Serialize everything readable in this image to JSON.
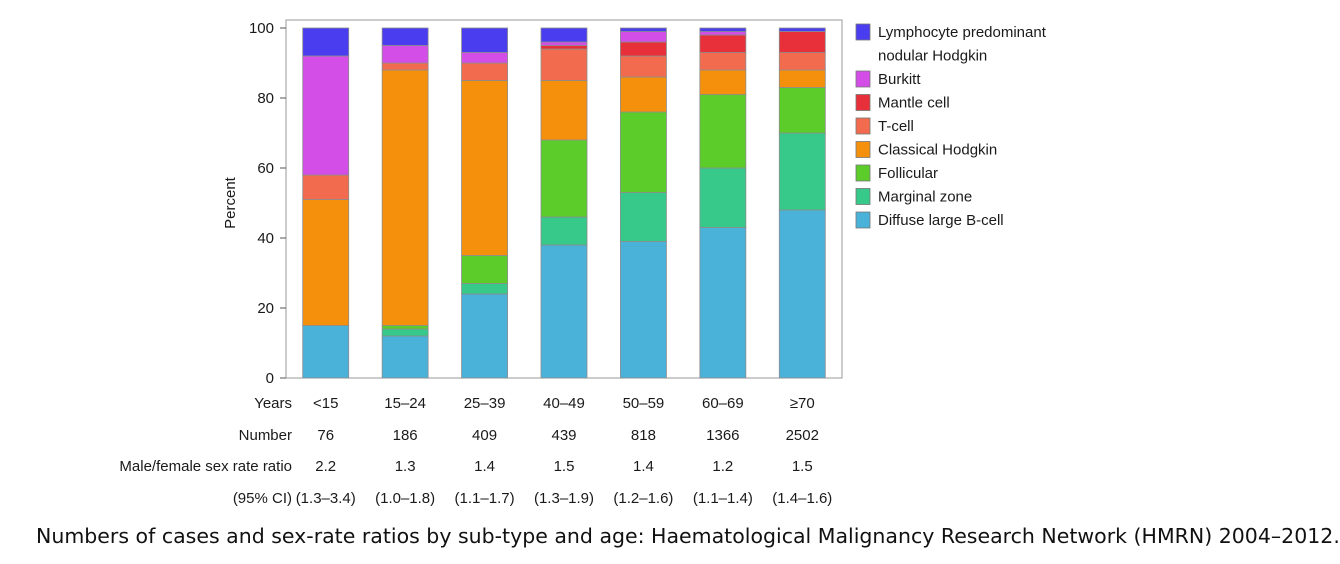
{
  "chart_data": {
    "type": "bar",
    "stacked": true,
    "ylabel": "Percent",
    "ylim": [
      0,
      100
    ],
    "yticks": [
      0,
      20,
      40,
      60,
      80,
      100
    ],
    "categories": [
      "<15",
      "15–24",
      "25–39",
      "40–49",
      "50–59",
      "60–69",
      "≥70"
    ],
    "series": [
      {
        "name": "Diffuse large B-cell",
        "color": "#4ab1d8",
        "values": [
          15,
          12,
          24,
          38,
          39,
          43,
          48
        ]
      },
      {
        "name": "Marginal zone",
        "color": "#36c98a",
        "values": [
          0,
          2,
          3,
          8,
          14,
          17,
          22
        ]
      },
      {
        "name": "Follicular",
        "color": "#5ccc2a",
        "values": [
          0,
          1,
          8,
          22,
          23,
          21,
          13
        ]
      },
      {
        "name": "Classical Hodgkin",
        "color": "#f5900c",
        "values": [
          36,
          73,
          50,
          17,
          10,
          7,
          5
        ]
      },
      {
        "name": "T-cell",
        "color": "#f26b4f",
        "values": [
          7,
          2,
          5,
          9,
          6,
          5,
          5
        ]
      },
      {
        "name": "Mantle cell",
        "color": "#e8303a",
        "values": [
          0,
          0,
          0,
          1,
          4,
          5,
          6
        ]
      },
      {
        "name": "Burkitt",
        "color": "#d24ee6",
        "values": [
          34,
          5,
          3,
          1,
          3,
          1,
          0
        ]
      },
      {
        "name": "Lymphocyte predominant\nnodular Hodgkin",
        "color": "#4a3df0",
        "values": [
          8,
          5,
          7,
          4,
          1,
          1,
          1
        ]
      }
    ],
    "legend_order": [
      7,
      6,
      5,
      4,
      3,
      2,
      1,
      0
    ],
    "legend_position": "right",
    "table": {
      "rows": [
        {
          "label": "Years",
          "values": [
            "<15",
            "15–24",
            "25–39",
            "40–49",
            "50–59",
            "60–69",
            "≥70"
          ]
        },
        {
          "label": "Number",
          "values": [
            "76",
            "186",
            "409",
            "439",
            "818",
            "1366",
            "2502"
          ]
        },
        {
          "label": "Male/female sex rate ratio",
          "values": [
            "2.2",
            "1.3",
            "1.4",
            "1.5",
            "1.4",
            "1.2",
            "1.5"
          ]
        },
        {
          "label": "(95% CI)",
          "values": [
            "(1.3–3.4)",
            "(1.0–1.8)",
            "(1.1–1.7)",
            "(1.3–1.9)",
            "(1.2–1.6)",
            "(1.1–1.4)",
            "(1.4–1.6)"
          ]
        }
      ]
    }
  },
  "caption": "Numbers of cases and sex-rate ratios by sub-type and age: Haematological Malignancy Research Network (HMRN) 2004–2012."
}
